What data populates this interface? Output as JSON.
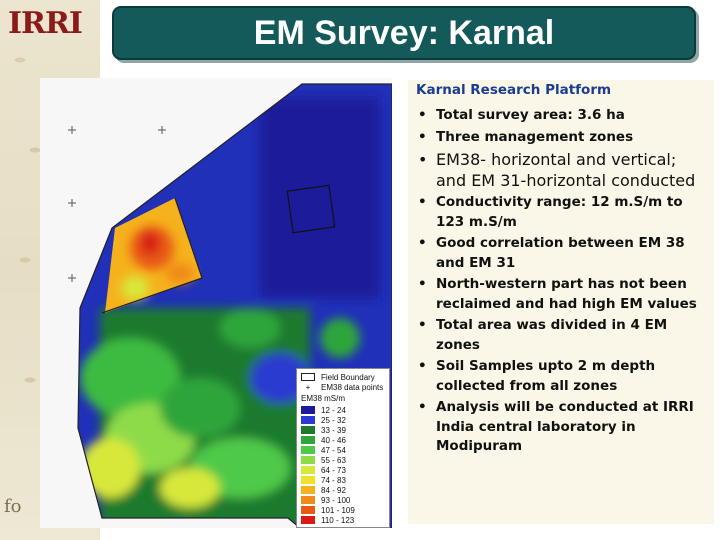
{
  "logo": {
    "text": "IRRI"
  },
  "footer_mark": "fo",
  "title": "EM Survey: Karnal",
  "panel": {
    "heading": "Karnal Research Platform",
    "bullets": [
      "Total survey area: 3.6 ha",
      "Three management zones",
      "EM38- horizontal and vertical; and EM 31-horizontal conducted",
      "Conductivity range: 12 m.S/m to 123 m.S/m",
      "Good correlation between EM 38 and EM 31",
      "North-western part has not been reclaimed and had high EM values",
      "Total area was divided in 4 EM zones",
      "Soil Samples upto 2 m depth collected from all zones",
      "Analysis will be conducted at IRRI India central laboratory in Modipuram"
    ]
  },
  "legend": {
    "boundary_label": "Field Boundary",
    "points_label": "EM38 data points",
    "units_label": "EM38 mS/m",
    "classes": [
      {
        "range": "12 - 24",
        "color": "#1a1aa0"
      },
      {
        "range": "25 - 32",
        "color": "#2a3ad0"
      },
      {
        "range": "33 - 39",
        "color": "#1f7a2e"
      },
      {
        "range": "40 - 46",
        "color": "#2fa53a"
      },
      {
        "range": "47 - 54",
        "color": "#4fc94a"
      },
      {
        "range": "55 - 63",
        "color": "#8edb4a"
      },
      {
        "range": "64 - 73",
        "color": "#d8e83a"
      },
      {
        "range": "74 - 83",
        "color": "#f2e02a"
      },
      {
        "range": "84 - 92",
        "color": "#f5b21c"
      },
      {
        "range": "93 - 100",
        "color": "#f08a18"
      },
      {
        "range": "101 - 109",
        "color": "#e85a14"
      },
      {
        "range": "110 - 123",
        "color": "#d81a12"
      }
    ]
  }
}
